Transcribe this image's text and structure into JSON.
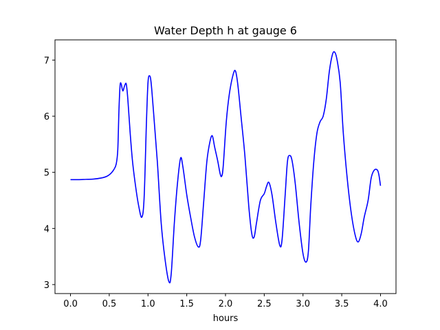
{
  "chart_data": {
    "type": "line",
    "title": "Water Depth h at gauge 6",
    "xlabel": "hours",
    "ylabel": "",
    "xlim": [
      -0.2,
      4.2
    ],
    "ylim": [
      2.84,
      7.36
    ],
    "xticks": [
      0.0,
      0.5,
      1.0,
      1.5,
      2.0,
      2.5,
      3.0,
      3.5,
      4.0
    ],
    "xtick_labels": [
      "0.0",
      "0.5",
      "1.0",
      "1.5",
      "2.0",
      "2.5",
      "3.0",
      "3.5",
      "4.0"
    ],
    "yticks": [
      3,
      4,
      5,
      6,
      7
    ],
    "ytick_labels": [
      "3",
      "4",
      "5",
      "6",
      "7"
    ],
    "grid": false,
    "series": [
      {
        "color": "#0000ff",
        "points": [
          [
            0.0,
            4.87
          ],
          [
            0.1,
            4.87
          ],
          [
            0.2,
            4.875
          ],
          [
            0.3,
            4.88
          ],
          [
            0.4,
            4.9
          ],
          [
            0.47,
            4.93
          ],
          [
            0.52,
            4.98
          ],
          [
            0.56,
            5.05
          ],
          [
            0.59,
            5.15
          ],
          [
            0.61,
            5.4
          ],
          [
            0.625,
            6.1
          ],
          [
            0.64,
            6.55
          ],
          [
            0.655,
            6.57
          ],
          [
            0.675,
            6.45
          ],
          [
            0.7,
            6.55
          ],
          [
            0.72,
            6.57
          ],
          [
            0.74,
            6.3
          ],
          [
            0.77,
            5.7
          ],
          [
            0.8,
            5.2
          ],
          [
            0.84,
            4.75
          ],
          [
            0.88,
            4.4
          ],
          [
            0.92,
            4.2
          ],
          [
            0.95,
            4.55
          ],
          [
            0.98,
            5.9
          ],
          [
            1.0,
            6.6
          ],
          [
            1.02,
            6.72
          ],
          [
            1.04,
            6.6
          ],
          [
            1.07,
            6.1
          ],
          [
            1.12,
            5.2
          ],
          [
            1.17,
            4.1
          ],
          [
            1.22,
            3.45
          ],
          [
            1.27,
            3.05
          ],
          [
            1.3,
            3.2
          ],
          [
            1.34,
            4.1
          ],
          [
            1.38,
            4.8
          ],
          [
            1.42,
            5.25
          ],
          [
            1.45,
            5.1
          ],
          [
            1.5,
            4.6
          ],
          [
            1.55,
            4.2
          ],
          [
            1.6,
            3.85
          ],
          [
            1.65,
            3.67
          ],
          [
            1.68,
            3.8
          ],
          [
            1.72,
            4.5
          ],
          [
            1.76,
            5.2
          ],
          [
            1.8,
            5.55
          ],
          [
            1.83,
            5.65
          ],
          [
            1.86,
            5.45
          ],
          [
            1.9,
            5.2
          ],
          [
            1.93,
            4.98
          ],
          [
            1.95,
            4.93
          ],
          [
            1.97,
            5.1
          ],
          [
            2.01,
            5.9
          ],
          [
            2.05,
            6.4
          ],
          [
            2.1,
            6.75
          ],
          [
            2.13,
            6.8
          ],
          [
            2.16,
            6.55
          ],
          [
            2.2,
            6.0
          ],
          [
            2.25,
            5.3
          ],
          [
            2.3,
            4.4
          ],
          [
            2.34,
            3.9
          ],
          [
            2.37,
            3.85
          ],
          [
            2.4,
            4.1
          ],
          [
            2.45,
            4.5
          ],
          [
            2.5,
            4.62
          ],
          [
            2.53,
            4.75
          ],
          [
            2.56,
            4.82
          ],
          [
            2.6,
            4.6
          ],
          [
            2.65,
            4.1
          ],
          [
            2.7,
            3.7
          ],
          [
            2.73,
            3.8
          ],
          [
            2.77,
            4.6
          ],
          [
            2.8,
            5.2
          ],
          [
            2.83,
            5.3
          ],
          [
            2.86,
            5.2
          ],
          [
            2.9,
            4.8
          ],
          [
            2.95,
            4.1
          ],
          [
            3.0,
            3.55
          ],
          [
            3.04,
            3.4
          ],
          [
            3.07,
            3.6
          ],
          [
            3.1,
            4.4
          ],
          [
            3.14,
            5.2
          ],
          [
            3.18,
            5.7
          ],
          [
            3.22,
            5.9
          ],
          [
            3.26,
            6.0
          ],
          [
            3.3,
            6.3
          ],
          [
            3.34,
            6.8
          ],
          [
            3.38,
            7.1
          ],
          [
            3.41,
            7.14
          ],
          [
            3.44,
            7.0
          ],
          [
            3.48,
            6.6
          ],
          [
            3.52,
            5.7
          ],
          [
            3.57,
            4.9
          ],
          [
            3.62,
            4.3
          ],
          [
            3.67,
            3.9
          ],
          [
            3.71,
            3.76
          ],
          [
            3.75,
            3.9
          ],
          [
            3.79,
            4.2
          ],
          [
            3.84,
            4.5
          ],
          [
            3.88,
            4.9
          ],
          [
            3.92,
            5.04
          ],
          [
            3.96,
            5.04
          ],
          [
            3.98,
            4.95
          ],
          [
            4.0,
            4.76
          ]
        ]
      }
    ]
  }
}
